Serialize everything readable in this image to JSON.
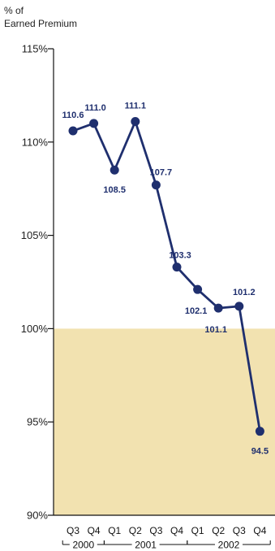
{
  "chart_data": {
    "type": "line",
    "ylabel": [
      "% of",
      "Earned Premium"
    ],
    "ylim": [
      90,
      115
    ],
    "yticks": [
      115,
      110,
      105,
      100,
      95,
      90
    ],
    "ytick_labels": [
      "115%",
      "110%",
      "105%",
      "100%",
      "95%",
      "90%"
    ],
    "categories": [
      "Q3",
      "Q4",
      "Q1",
      "Q2",
      "Q3",
      "Q4",
      "Q1",
      "Q2",
      "Q3",
      "Q4"
    ],
    "years": [
      {
        "label": "2000",
        "from": 0,
        "to": 1
      },
      {
        "label": "2001",
        "from": 2,
        "to": 5
      },
      {
        "label": "2002",
        "from": 6,
        "to": 9
      }
    ],
    "values": [
      110.6,
      111.0,
      108.5,
      111.1,
      107.7,
      103.3,
      102.1,
      101.1,
      101.2,
      94.5
    ],
    "data_labels": [
      "110.6",
      "111.0",
      "108.5",
      "111.1",
      "107.7",
      "103.3",
      "102.1",
      "101.1",
      "101.2",
      "94.5"
    ],
    "shaded_band": {
      "from": 90,
      "to": 100,
      "color": "#f2e2b0"
    },
    "line_color": "#1f2f6e",
    "grid": false
  }
}
